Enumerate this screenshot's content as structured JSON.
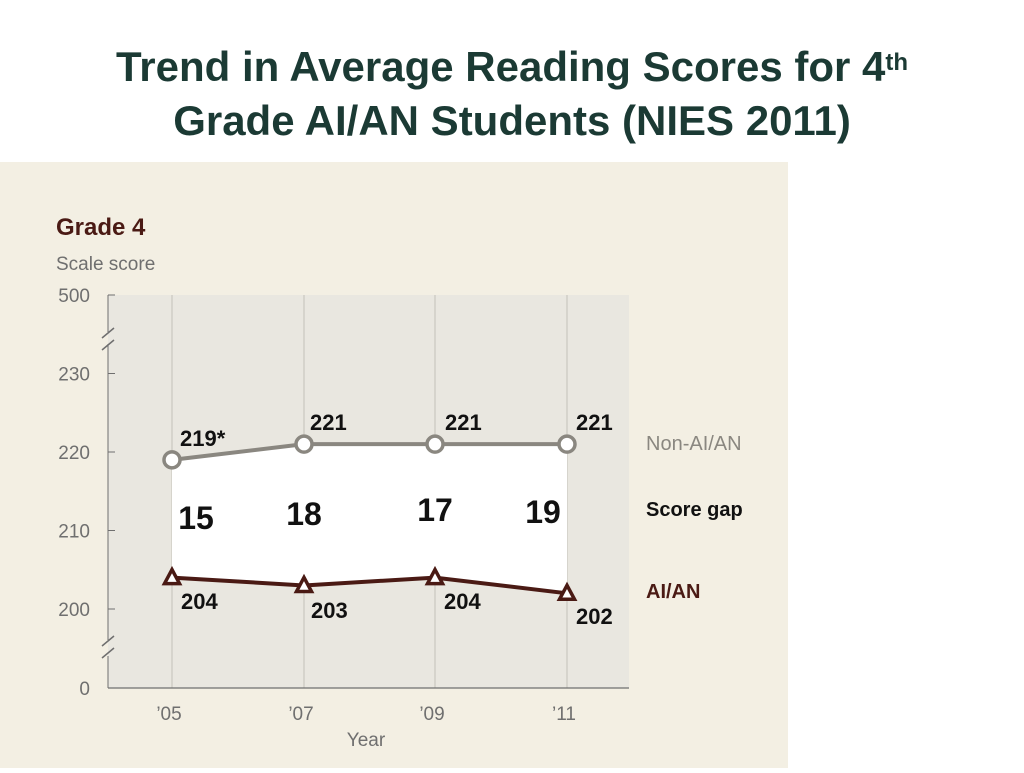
{
  "slide": {
    "title_part1": "Trend in Average Reading Scores for 4",
    "title_sup": "th",
    "title_part2": "Grade AI/AN Students (NIES 2011)"
  },
  "chart_data": {
    "type": "line",
    "title": "Grade 4",
    "ylabel": "Scale score",
    "xlabel": "Year",
    "x": [
      "’05",
      "’07",
      "’09",
      "’11"
    ],
    "yticks": [
      "0",
      "200",
      "210",
      "220",
      "230",
      "500"
    ],
    "ylim": [
      195,
      235
    ],
    "axis_breaks": [
      "between 0 and 200",
      "between 230 and 500"
    ],
    "grid": "vertical gridlines at each year",
    "series": [
      {
        "name": "Non-AI/AN",
        "values": [
          219,
          221,
          221,
          221
        ],
        "labels": [
          "219*",
          "221",
          "221",
          "221"
        ],
        "color": "#8a8780",
        "marker": "circle"
      },
      {
        "name": "AI/AN",
        "values": [
          204,
          203,
          204,
          202
        ],
        "labels": [
          "204",
          "203",
          "204",
          "202"
        ],
        "color": "#4a1a14",
        "marker": "triangle"
      }
    ],
    "gap": {
      "name": "Score gap",
      "values": [
        "15",
        "18",
        "17",
        "19"
      ]
    },
    "colors": {
      "panel_bg": "#f3efe3",
      "plot_bg": "#e9e7e0",
      "gap_fill": "#ffffff",
      "title": "#4a1a14",
      "axis_text": "#6f6f6f"
    }
  }
}
